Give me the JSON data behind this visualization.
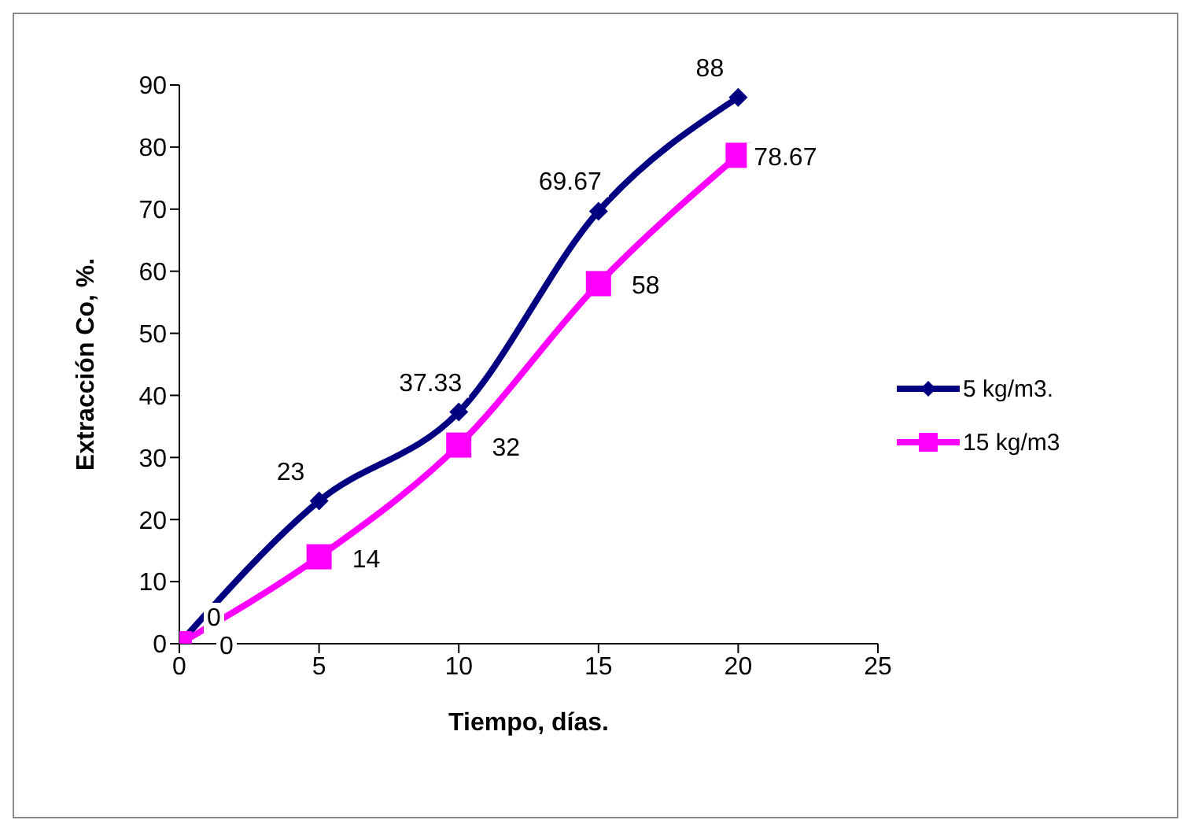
{
  "chart_data": {
    "type": "line",
    "xlabel": "Tiempo, días.",
    "ylabel": "Extracción Co, %.",
    "x": [
      0,
      5,
      10,
      15,
      20
    ],
    "series": [
      {
        "name": "5 kg/m3.",
        "color": "#000080",
        "marker": "diamond",
        "values": [
          0,
          23,
          37.33,
          69.67,
          88
        ]
      },
      {
        "name": "15 kg/m3",
        "color": "#ff00ff",
        "marker": "square",
        "values": [
          0,
          14,
          32,
          58,
          78.67
        ]
      }
    ],
    "xlim": [
      0,
      25
    ],
    "xticks": [
      0,
      5,
      10,
      15,
      20,
      25
    ],
    "ylim": [
      0,
      90
    ],
    "yticks": [
      0,
      10,
      20,
      30,
      40,
      50,
      60,
      70,
      80,
      90
    ],
    "data_labels": true,
    "legend": "right",
    "grid": false
  }
}
